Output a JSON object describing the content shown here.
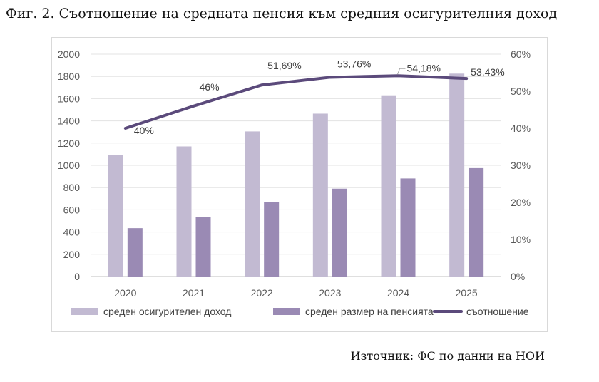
{
  "title": "Фиг. 2. Съотношение на средната пенсия към средния осигурителния доход",
  "source": "Източник: ФС по данни на НОИ",
  "chart_data": {
    "type": "bar",
    "categories": [
      "2020",
      "2021",
      "2022",
      "2023",
      "2024",
      "2025"
    ],
    "series": [
      {
        "name": "среден осигурителен доход",
        "type": "bar",
        "axis": "left",
        "color": "#c2bad2",
        "values": [
          1090,
          1170,
          1305,
          1465,
          1630,
          1825
        ]
      },
      {
        "name": "среден размер на пенсията",
        "type": "bar",
        "axis": "left",
        "color": "#9a8ab4",
        "values": [
          435,
          535,
          672,
          790,
          882,
          975
        ]
      },
      {
        "name": "съотношение",
        "type": "line",
        "axis": "right",
        "color": "#5b4a7b",
        "values": [
          40,
          46,
          51.69,
          53.76,
          54.18,
          53.43
        ],
        "labels": [
          "40%",
          "46%",
          "51,69%",
          "53,76%",
          "54,18%",
          "53,43%"
        ]
      }
    ],
    "y_left": {
      "min": 0,
      "max": 2000,
      "step": 200,
      "ticks": [
        "0",
        "200",
        "400",
        "600",
        "800",
        "1000",
        "1200",
        "1400",
        "1600",
        "1800",
        "2000"
      ]
    },
    "y_right": {
      "min": 0,
      "max": 60,
      "step": 10,
      "ticks": [
        "0%",
        "10%",
        "20%",
        "30%",
        "40%",
        "50%",
        "60%"
      ]
    },
    "grid": true,
    "legend_position": "bottom"
  }
}
